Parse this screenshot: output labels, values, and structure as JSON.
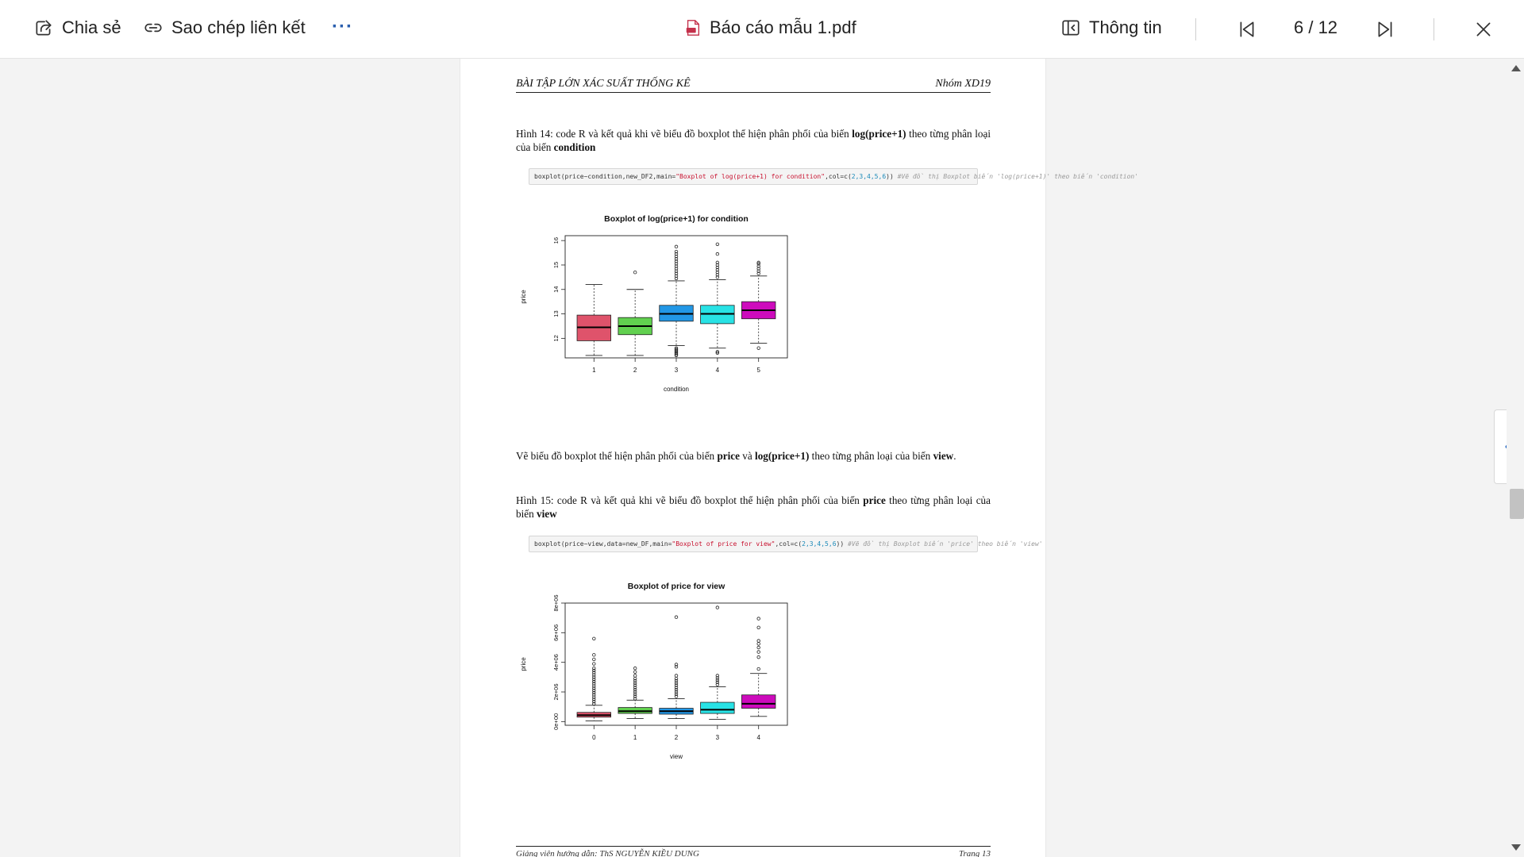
{
  "toolbar": {
    "share_label": "Chia sẻ",
    "copy_link_label": "Sao chép liên kết",
    "more_label": "···",
    "file_name": "Báo cáo mẫu 1.pdf",
    "info_label": "Thông tin",
    "page_indicator": "6 / 12"
  },
  "icons": {
    "share": "share-icon",
    "link": "link-icon",
    "pdf": "pdf-file-icon",
    "info": "info-panel-icon",
    "first_page": "first-page-icon",
    "last_page": "last-page-icon",
    "close": "close-icon",
    "side_panel": "chevron-left-icon"
  },
  "colors": {
    "accent": "#0078d4",
    "pdf_red": "#d13438"
  },
  "page": {
    "header_left": "BÀI TẬP LỚN XÁC SUẤT THỐNG KÊ",
    "header_right": "Nhóm XD19",
    "fig14_caption": [
      "Hình 14: code R và kết quả khi vẽ biểu đồ boxplot thể hiện phân phối của biến ",
      "log(price+1)",
      " theo từng phân loại của biến ",
      "condition"
    ],
    "code1": {
      "prefix": "boxplot(price~condition,new_DF2,main=",
      "string": "\"Boxplot of log(price+1) for condition\"",
      "mid": ",col=c(",
      "nums": "2,3,4,5,6",
      "suffix": ")) ",
      "comment": "#Vẽ đồ thị Boxplot biến 'log(price+1)' theo biến 'condition'"
    },
    "para_between": [
      "Vẽ biểu đồ boxplot thể hiện phân phối của biến ",
      "price",
      " và ",
      "log(price+1)",
      " theo từng phân loại của biến ",
      "view",
      "."
    ],
    "fig15_caption": [
      "Hình 15: code R và kết quả khi vẽ biểu đồ boxplot thể hiện phân phối của biến ",
      "price",
      " theo từng phân loại của biến ",
      "view"
    ],
    "code2": {
      "prefix": "boxplot(price~view,data=new_DF,main=",
      "string": "\"Boxplot of price for view\"",
      "mid": ",col=c(",
      "nums": "2,3,4,5,6",
      "suffix": ")) ",
      "comment": "#Vẽ đồ thị Boxplot biến 'price' theo biến 'view'"
    },
    "footer_left": "Giảng viên hướng dẫn: ThS NGUYỄN KIỀU DUNG",
    "footer_right": "Trang 13"
  },
  "chart_data": [
    {
      "type": "boxplot",
      "title": "Boxplot of log(price+1) for condition",
      "xlabel": "condition",
      "ylabel": "price",
      "categories": [
        "1",
        "2",
        "3",
        "4",
        "5"
      ],
      "yticks": [
        "12",
        "13",
        "14",
        "15",
        "16"
      ],
      "ylim": [
        11.2,
        16.2
      ],
      "colors": [
        "#df536b",
        "#61d04f",
        "#2297e6",
        "#28e2e5",
        "#cd0bbc"
      ],
      "boxes": [
        {
          "min": 11.3,
          "q1": 11.9,
          "median": 12.45,
          "q3": 12.95,
          "max": 14.2,
          "outliers": []
        },
        {
          "min": 11.3,
          "q1": 12.15,
          "median": 12.5,
          "q3": 12.85,
          "max": 14.0,
          "outliers": [
            14.7
          ]
        },
        {
          "min": 11.7,
          "q1": 12.7,
          "median": 13.0,
          "q3": 13.35,
          "max": 14.35,
          "outliers": [
            11.3,
            11.35,
            11.4,
            11.45,
            11.5,
            11.55,
            11.6,
            14.45,
            14.55,
            14.65,
            14.75,
            14.85,
            14.95,
            15.05,
            15.15,
            15.25,
            15.35,
            15.45,
            15.55,
            15.75
          ]
        },
        {
          "min": 11.6,
          "q1": 12.6,
          "median": 13.0,
          "q3": 13.35,
          "max": 14.4,
          "outliers": [
            11.4,
            11.45,
            14.5,
            14.6,
            14.7,
            14.8,
            14.9,
            15.0,
            15.1,
            15.45,
            15.85
          ]
        },
        {
          "min": 11.8,
          "q1": 12.8,
          "median": 13.15,
          "q3": 13.5,
          "max": 14.55,
          "outliers": [
            11.6,
            14.65,
            14.75,
            14.85,
            14.95,
            15.05,
            15.1
          ]
        }
      ]
    },
    {
      "type": "boxplot",
      "title": "Boxplot of price for view",
      "xlabel": "view",
      "ylabel": "price",
      "categories": [
        "0",
        "1",
        "2",
        "3",
        "4"
      ],
      "yticks": [
        "0e+00",
        "2e+06",
        "4e+06",
        "6e+06",
        "8e+06"
      ],
      "ylim": [
        -250000,
        8000000
      ],
      "colors": [
        "#df536b",
        "#61d04f",
        "#2297e6",
        "#28e2e5",
        "#cd0bbc"
      ],
      "boxes": [
        {
          "min": 50000,
          "q1": 300000,
          "median": 430000,
          "q3": 620000,
          "max": 1100000,
          "outliers": [
            1200000,
            1350000,
            1500000,
            1650000,
            1800000,
            1950000,
            2100000,
            2250000,
            2400000,
            2550000,
            2700000,
            2850000,
            3000000,
            3150000,
            3300000,
            3450000,
            3600000,
            3900000,
            4200000,
            4500000,
            5600000
          ]
        },
        {
          "min": 200000,
          "q1": 550000,
          "median": 700000,
          "q3": 950000,
          "max": 1450000,
          "outliers": [
            1550000,
            1700000,
            1850000,
            2000000,
            2150000,
            2300000,
            2450000,
            2600000,
            2750000,
            2900000,
            3100000,
            3350000,
            3600000
          ]
        },
        {
          "min": 200000,
          "q1": 500000,
          "median": 700000,
          "q3": 900000,
          "max": 1550000,
          "outliers": [
            1700000,
            1850000,
            2000000,
            2150000,
            2300000,
            2450000,
            2600000,
            2750000,
            2900000,
            3100000,
            3700000,
            3850000,
            7050000
          ]
        },
        {
          "min": 150000,
          "q1": 550000,
          "median": 800000,
          "q3": 1300000,
          "max": 2350000,
          "outliers": [
            2500000,
            2650000,
            2800000,
            2950000,
            3100000,
            7700000
          ]
        },
        {
          "min": 350000,
          "q1": 900000,
          "median": 1200000,
          "q3": 1800000,
          "max": 3250000,
          "outliers": [
            3550000,
            4350000,
            4700000,
            5000000,
            5250000,
            5450000,
            6350000,
            6950000
          ]
        }
      ]
    }
  ]
}
